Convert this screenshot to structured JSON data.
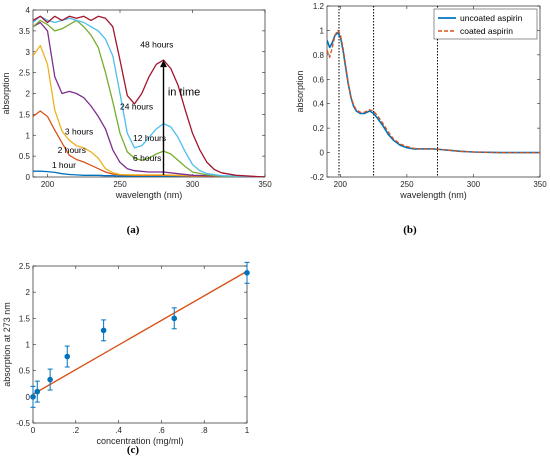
{
  "chart_data": [
    {
      "panel": "(a)",
      "type": "line",
      "xlabel": "wavelength (nm)",
      "ylabel": "absorption",
      "xlim": [
        190,
        350
      ],
      "ylim": [
        0,
        4
      ],
      "xticks": [
        200,
        250,
        300,
        350
      ],
      "yticks": [
        0,
        0.5,
        1,
        1.5,
        2,
        2.5,
        3,
        3.5,
        4
      ],
      "grid": false,
      "series": [
        {
          "name": "1 hour",
          "color": "#0072BD",
          "x": [
            190,
            195,
            200,
            205,
            210,
            215,
            220,
            225,
            230,
            235,
            240,
            245,
            250,
            260,
            270,
            280,
            290,
            300,
            320,
            350
          ],
          "y": [
            0.14,
            0.14,
            0.13,
            0.11,
            0.08,
            0.06,
            0.05,
            0.04,
            0.04,
            0.04,
            0.03,
            0.03,
            0.02,
            0.02,
            0.02,
            0.02,
            0.01,
            0.01,
            0.01,
            0.0
          ]
        },
        {
          "name": "2 hours",
          "color": "#D95319",
          "x": [
            190,
            195,
            200,
            205,
            210,
            215,
            220,
            225,
            230,
            235,
            240,
            245,
            250,
            260,
            270,
            280,
            290,
            300,
            320,
            350
          ],
          "y": [
            1.45,
            1.58,
            1.45,
            1.12,
            0.82,
            0.52,
            0.42,
            0.36,
            0.28,
            0.2,
            0.12,
            0.07,
            0.05,
            0.04,
            0.04,
            0.04,
            0.03,
            0.02,
            0.01,
            0.0
          ]
        },
        {
          "name": "3 hours",
          "color": "#EDB120",
          "x": [
            190,
            195,
            200,
            205,
            210,
            215,
            220,
            225,
            230,
            235,
            240,
            245,
            250,
            260,
            270,
            280,
            290,
            300,
            320,
            350
          ],
          "y": [
            2.9,
            3.15,
            2.7,
            1.6,
            1.1,
            0.88,
            0.75,
            0.7,
            0.6,
            0.45,
            0.2,
            0.1,
            0.06,
            0.05,
            0.05,
            0.05,
            0.04,
            0.03,
            0.02,
            0.0
          ]
        },
        {
          "name": "6 hours",
          "color": "#7E2F8E",
          "x": [
            190,
            195,
            200,
            205,
            210,
            215,
            220,
            225,
            230,
            235,
            240,
            245,
            250,
            255,
            260,
            270,
            280,
            290,
            300,
            320,
            350
          ],
          "y": [
            3.6,
            3.7,
            3.5,
            2.4,
            2.0,
            2.05,
            2.0,
            1.9,
            1.7,
            1.45,
            1.15,
            0.65,
            0.35,
            0.2,
            0.15,
            0.12,
            0.12,
            0.08,
            0.04,
            0.02,
            0.0
          ]
        },
        {
          "name": "12 hours",
          "color": "#77AC30",
          "x": [
            190,
            195,
            200,
            205,
            210,
            215,
            220,
            225,
            230,
            235,
            240,
            245,
            250,
            255,
            260,
            265,
            270,
            275,
            280,
            285,
            290,
            295,
            300,
            310,
            320,
            350
          ],
          "y": [
            3.6,
            3.75,
            3.65,
            3.5,
            3.55,
            3.65,
            3.75,
            3.6,
            3.4,
            3.1,
            2.5,
            1.8,
            1.05,
            0.6,
            0.45,
            0.4,
            0.45,
            0.55,
            0.62,
            0.55,
            0.4,
            0.25,
            0.12,
            0.05,
            0.02,
            0.0
          ]
        },
        {
          "name": "24 hours",
          "color": "#4DBEEE",
          "x": [
            190,
            195,
            200,
            205,
            210,
            215,
            220,
            225,
            230,
            235,
            240,
            245,
            250,
            255,
            260,
            265,
            270,
            275,
            280,
            285,
            290,
            295,
            300,
            305,
            310,
            320,
            350
          ],
          "y": [
            3.7,
            3.85,
            3.75,
            3.7,
            3.75,
            3.8,
            3.75,
            3.7,
            3.6,
            3.5,
            3.3,
            2.9,
            2.0,
            1.05,
            0.7,
            0.75,
            0.95,
            1.15,
            1.28,
            1.2,
            0.95,
            0.6,
            0.3,
            0.15,
            0.08,
            0.03,
            0.0
          ]
        },
        {
          "name": "48 hours",
          "color": "#A2142F",
          "x": [
            190,
            195,
            200,
            205,
            210,
            215,
            220,
            225,
            230,
            235,
            240,
            245,
            250,
            255,
            260,
            265,
            270,
            275,
            280,
            285,
            290,
            295,
            300,
            305,
            310,
            315,
            320,
            330,
            340,
            350
          ],
          "y": [
            3.75,
            3.85,
            3.7,
            3.85,
            3.75,
            3.85,
            3.8,
            3.85,
            3.75,
            3.85,
            3.8,
            3.6,
            2.8,
            1.95,
            1.75,
            2.0,
            2.4,
            2.7,
            2.8,
            2.6,
            2.2,
            1.6,
            1.05,
            0.65,
            0.35,
            0.18,
            0.1,
            0.04,
            0.02,
            0.0
          ]
        }
      ],
      "labels": [
        {
          "text": "1 hour",
          "x": 203,
          "y": 0.22
        },
        {
          "text": "2 hours",
          "x": 207,
          "y": 0.57
        },
        {
          "text": "3 hours",
          "x": 212,
          "y": 1.02
        },
        {
          "text": "6 hours",
          "x": 259,
          "y": 0.38
        },
        {
          "text": "12 hours",
          "x": 259,
          "y": 0.86
        },
        {
          "text": "24 hours",
          "x": 250,
          "y": 1.62
        },
        {
          "text": "48 hours",
          "x": 264,
          "y": 3.1
        }
      ],
      "annotation": {
        "text": "in time",
        "arrow_x": 280,
        "arrow_from": 0.05,
        "arrow_to": 2.8,
        "label_x": 283,
        "label_y": 1.95
      }
    },
    {
      "panel": "(b)",
      "type": "line",
      "xlabel": "wavelength (nm)",
      "ylabel": "absorption",
      "xlim": [
        190,
        350
      ],
      "ylim": [
        -0.2,
        1.2
      ],
      "xticks": [
        200,
        250,
        300,
        350
      ],
      "yticks": [
        -0.2,
        0,
        0.2,
        0.4,
        0.6,
        0.8,
        1,
        1.2
      ],
      "grid": false,
      "legend": "top-right",
      "vlines": [
        199,
        225,
        273
      ],
      "series": [
        {
          "name": "uncoated aspirin",
          "color": "#0072BD",
          "dash": "solid",
          "x": [
            190,
            192,
            194,
            196,
            198,
            200,
            202,
            204,
            206,
            208,
            210,
            212,
            215,
            218,
            220,
            222,
            225,
            228,
            232,
            236,
            240,
            245,
            250,
            255,
            260,
            265,
            270,
            275,
            280,
            290,
            300,
            320,
            350
          ],
          "y": [
            0.92,
            0.86,
            0.9,
            0.96,
            0.98,
            0.95,
            0.84,
            0.7,
            0.56,
            0.45,
            0.38,
            0.34,
            0.32,
            0.32,
            0.33,
            0.34,
            0.32,
            0.28,
            0.22,
            0.15,
            0.1,
            0.06,
            0.04,
            0.03,
            0.03,
            0.03,
            0.03,
            0.025,
            0.02,
            0.01,
            0.005,
            0.0,
            0.0
          ]
        },
        {
          "name": "coated aspirin",
          "color": "#D95319",
          "dash": "dashed",
          "x": [
            190,
            192,
            194,
            196,
            198,
            200,
            202,
            204,
            206,
            208,
            210,
            212,
            215,
            218,
            220,
            222,
            225,
            228,
            232,
            236,
            240,
            245,
            250,
            255,
            260,
            265,
            270,
            275,
            280,
            290,
            300,
            320,
            350
          ],
          "y": [
            0.84,
            0.78,
            0.86,
            0.96,
            1.0,
            0.97,
            0.86,
            0.72,
            0.57,
            0.46,
            0.39,
            0.35,
            0.33,
            0.33,
            0.34,
            0.35,
            0.34,
            0.3,
            0.24,
            0.17,
            0.11,
            0.07,
            0.05,
            0.035,
            0.03,
            0.03,
            0.03,
            0.025,
            0.02,
            0.01,
            0.005,
            0.0,
            0.0
          ]
        }
      ]
    },
    {
      "panel": "(c)",
      "type": "scatter",
      "xlabel": "concentration (mg/ml)",
      "ylabel": "absorption at 273 nm",
      "xlim": [
        0,
        1
      ],
      "ylim": [
        -0.5,
        2.5
      ],
      "xticks": [
        0,
        0.2,
        0.4,
        0.6,
        0.8,
        1
      ],
      "yticks": [
        -0.5,
        0,
        0.5,
        1,
        1.5,
        2,
        2.5
      ],
      "grid": false,
      "points": {
        "color": "#0072BD",
        "x": [
          0.0,
          0.02,
          0.08,
          0.16,
          0.33,
          0.66,
          1.0
        ],
        "y": [
          0.0,
          0.1,
          0.33,
          0.77,
          1.27,
          1.5,
          2.37
        ],
        "err": [
          0.2,
          0.2,
          0.2,
          0.2,
          0.2,
          0.2,
          0.2
        ]
      },
      "fit": {
        "color": "#D95319",
        "x": [
          0,
          1
        ],
        "y": [
          0.05,
          2.4
        ]
      }
    }
  ],
  "panel_labels": {
    "a": "(a)",
    "b": "(b)",
    "c": "(c)"
  },
  "legend_b": {
    "uncoated": "uncoated aspirin",
    "coated": "coated aspirin"
  }
}
